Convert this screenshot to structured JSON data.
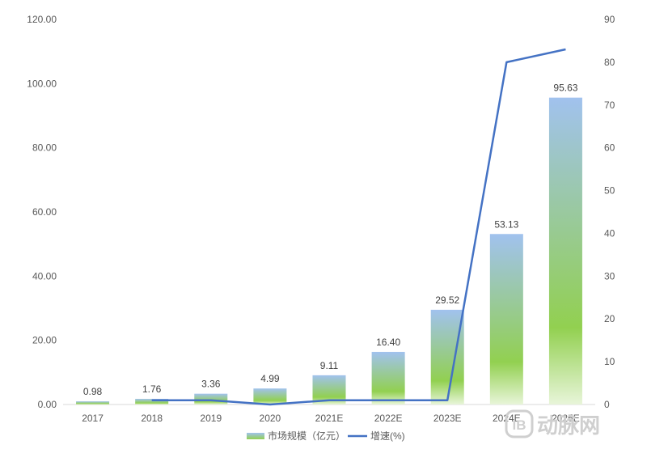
{
  "chart_data": {
    "type": "bar",
    "categories": [
      "2017",
      "2018",
      "2019",
      "2020",
      "2021E",
      "2022E",
      "2023E",
      "2024E",
      "2025E"
    ],
    "series": [
      {
        "name": "市场规模（亿元）",
        "type": "bar",
        "axis": "left",
        "values": [
          0.98,
          1.76,
          3.36,
          4.99,
          9.11,
          16.4,
          29.52,
          53.13,
          95.63
        ],
        "value_labels": [
          "0.98",
          "1.76",
          "3.36",
          "4.99",
          "9.11",
          "16.40",
          "29.52",
          "53.13",
          "95.63"
        ],
        "color_top": "#a1c2ee",
        "color_bottom": "#92d050"
      },
      {
        "name": "增速(%)",
        "type": "line",
        "axis": "right",
        "values": [
          null,
          1,
          1,
          0,
          1,
          1,
          1,
          80,
          83
        ],
        "color": "#4472c4"
      }
    ],
    "ylim_left": [
      0,
      120
    ],
    "ylim_right": [
      0,
      90
    ],
    "left_ticks": [
      "0.00",
      "20.00",
      "40.00",
      "60.00",
      "80.00",
      "100.00",
      "120.00"
    ],
    "right_ticks": [
      "0",
      "10",
      "20",
      "30",
      "40",
      "50",
      "60",
      "70",
      "80",
      "90"
    ],
    "grid": false,
    "legend_position": "bottom",
    "xlabel": "",
    "ylabel": ""
  },
  "watermark": {
    "logo_glyph": "IB",
    "text": "动脉网",
    "color": "#c8c8c8"
  }
}
